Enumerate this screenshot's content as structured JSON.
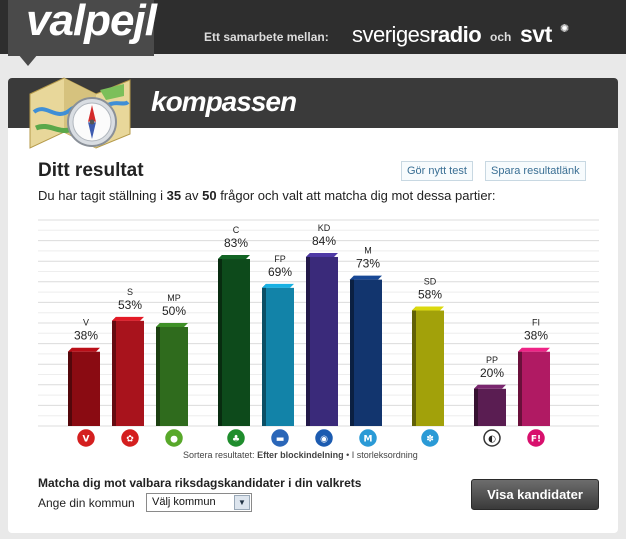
{
  "header": {
    "logo": "valpejl",
    "collab_text": "Ett samarbete mellan:",
    "partner1_a": "sveriges",
    "partner1_b": "radio",
    "connector": "och",
    "partner2": "svt"
  },
  "panel": {
    "title": "kompassen",
    "result_title": "Ditt resultat",
    "new_test_label": "Gör nytt test",
    "save_link_label": "Spara resultatlänk",
    "stance": {
      "prefix": "Du har tagit ställning i",
      "answered": "35",
      "of": "av",
      "total": "50",
      "suffix": "frågor och valt att matcha dig mot dessa partier:"
    },
    "sort": {
      "prefix": "Sortera resultatet:",
      "active": "Efter blockindelning",
      "separator": "•",
      "other": "I storleksordning"
    },
    "match": {
      "title": "Matcha dig mot valbara riksdagskandidater i din valkrets",
      "kommun_label": "Ange din kommun",
      "kommun_value": "Välj kommun",
      "visa_label": "Visa kandidater"
    }
  },
  "chart_data": {
    "type": "bar",
    "categories": [
      "V",
      "S",
      "MP",
      "C",
      "FP",
      "KD",
      "M",
      "SD",
      "PP",
      "FI"
    ],
    "values": [
      38,
      53,
      50,
      83,
      69,
      84,
      73,
      58,
      20,
      38
    ],
    "value_labels": [
      "38%",
      "53%",
      "50%",
      "83%",
      "69%",
      "84%",
      "73%",
      "58%",
      "20%",
      "38%"
    ],
    "ylim": [
      0,
      100
    ],
    "grid": true,
    "colors": [
      "#8a0b12",
      "#a8131c",
      "#2f6b1d",
      "#0d4a1b",
      "#1283a8",
      "#3a2a7a",
      "#12356e",
      "#a2a10a",
      "#5a1d52",
      "#b01a63"
    ],
    "icon_colors": [
      "#d41f1f",
      "#d41f1f",
      "#58a82a",
      "#1f8d2d",
      "#2a66b8",
      "#1c5bb0",
      "#2a9ad6",
      "#2a9ad6",
      "#333333",
      "#d8106d"
    ],
    "icons": [
      "rose-v-icon",
      "rose-s-icon",
      "mp-sun-icon",
      "c-clover-icon",
      "fp-car-icon",
      "kd-globe-icon",
      "m-logo-icon",
      "sd-flower-icon",
      "pp-pirate-icon",
      "fi-logo-icon"
    ],
    "icon_glyphs": [
      "V",
      "✿",
      "●",
      "♣",
      "▬",
      "◉",
      "M",
      "✽",
      "◐",
      "F!"
    ],
    "groups": [
      [
        0,
        1,
        2
      ],
      [
        3,
        4,
        5,
        6
      ],
      [
        7
      ],
      [
        8,
        9
      ]
    ]
  }
}
